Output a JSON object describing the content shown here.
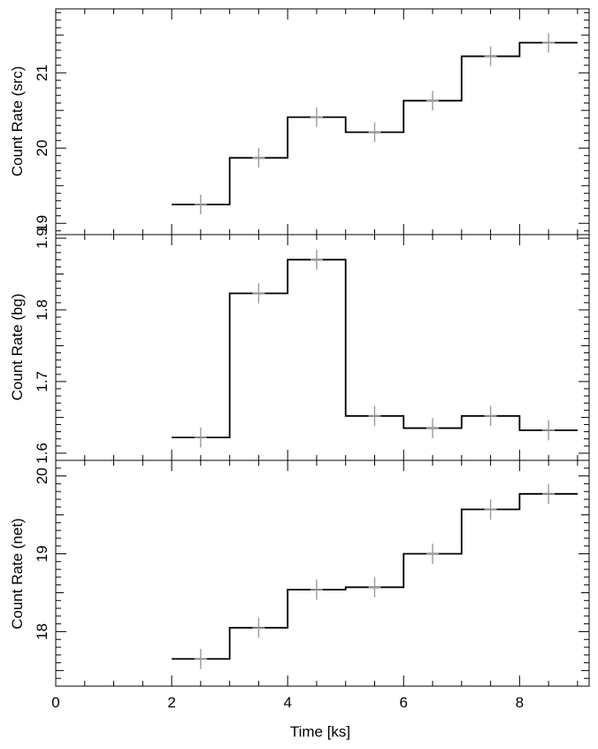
{
  "chart_data": [
    {
      "type": "line",
      "drawstyle": "steps",
      "ylabel": "Count Rate (src)",
      "xlim": [
        0,
        9.2
      ],
      "ylim": [
        18.85,
        21.85
      ],
      "yticks_major": [
        19,
        20,
        21
      ],
      "ytick_labels": [
        "19",
        "20",
        "21"
      ],
      "series": [
        {
          "x": [
            2.5,
            3.5,
            4.5,
            5.5,
            6.5,
            7.5,
            8.5
          ],
          "xerr": 0.5,
          "y": [
            19.25,
            19.87,
            20.41,
            20.21,
            20.63,
            21.22,
            21.4
          ],
          "yerr": [
            0.13,
            0.13,
            0.13,
            0.13,
            0.13,
            0.13,
            0.13
          ]
        }
      ]
    },
    {
      "type": "line",
      "drawstyle": "steps",
      "ylabel": "Count Rate (bg)",
      "xlim": [
        0,
        9.2
      ],
      "ylim": [
        1.59,
        1.905
      ],
      "yticks_major": [
        1.6,
        1.7,
        1.8,
        1.9
      ],
      "ytick_labels": [
        "1.6",
        "1.7",
        "1.8",
        "1.9"
      ],
      "series": [
        {
          "x": [
            2.5,
            3.5,
            4.5,
            5.5,
            6.5,
            7.5,
            8.5
          ],
          "xerr": 0.5,
          "y": [
            1.622,
            1.823,
            1.87,
            1.652,
            1.635,
            1.652,
            1.632
          ],
          "yerr": [
            0.014,
            0.014,
            0.014,
            0.014,
            0.014,
            0.014,
            0.014
          ]
        }
      ]
    },
    {
      "type": "line",
      "drawstyle": "steps",
      "ylabel": "Count Rate (net)",
      "xlabel": "Time [ks]",
      "xlim": [
        0,
        9.2
      ],
      "xticks_major": [
        0,
        2,
        4,
        6,
        8
      ],
      "xtick_labels": [
        "0",
        "2",
        "4",
        "6",
        "8"
      ],
      "ylim": [
        17.3,
        20.2
      ],
      "yticks_major": [
        18,
        19,
        20
      ],
      "ytick_labels": [
        "18",
        "19",
        "20"
      ],
      "series": [
        {
          "x": [
            2.5,
            3.5,
            4.5,
            5.5,
            6.5,
            7.5,
            8.5
          ],
          "xerr": 0.5,
          "y": [
            17.65,
            18.05,
            18.54,
            18.57,
            19.0,
            19.57,
            19.77
          ],
          "yerr": [
            0.13,
            0.13,
            0.13,
            0.13,
            0.13,
            0.13,
            0.13
          ]
        }
      ]
    }
  ]
}
